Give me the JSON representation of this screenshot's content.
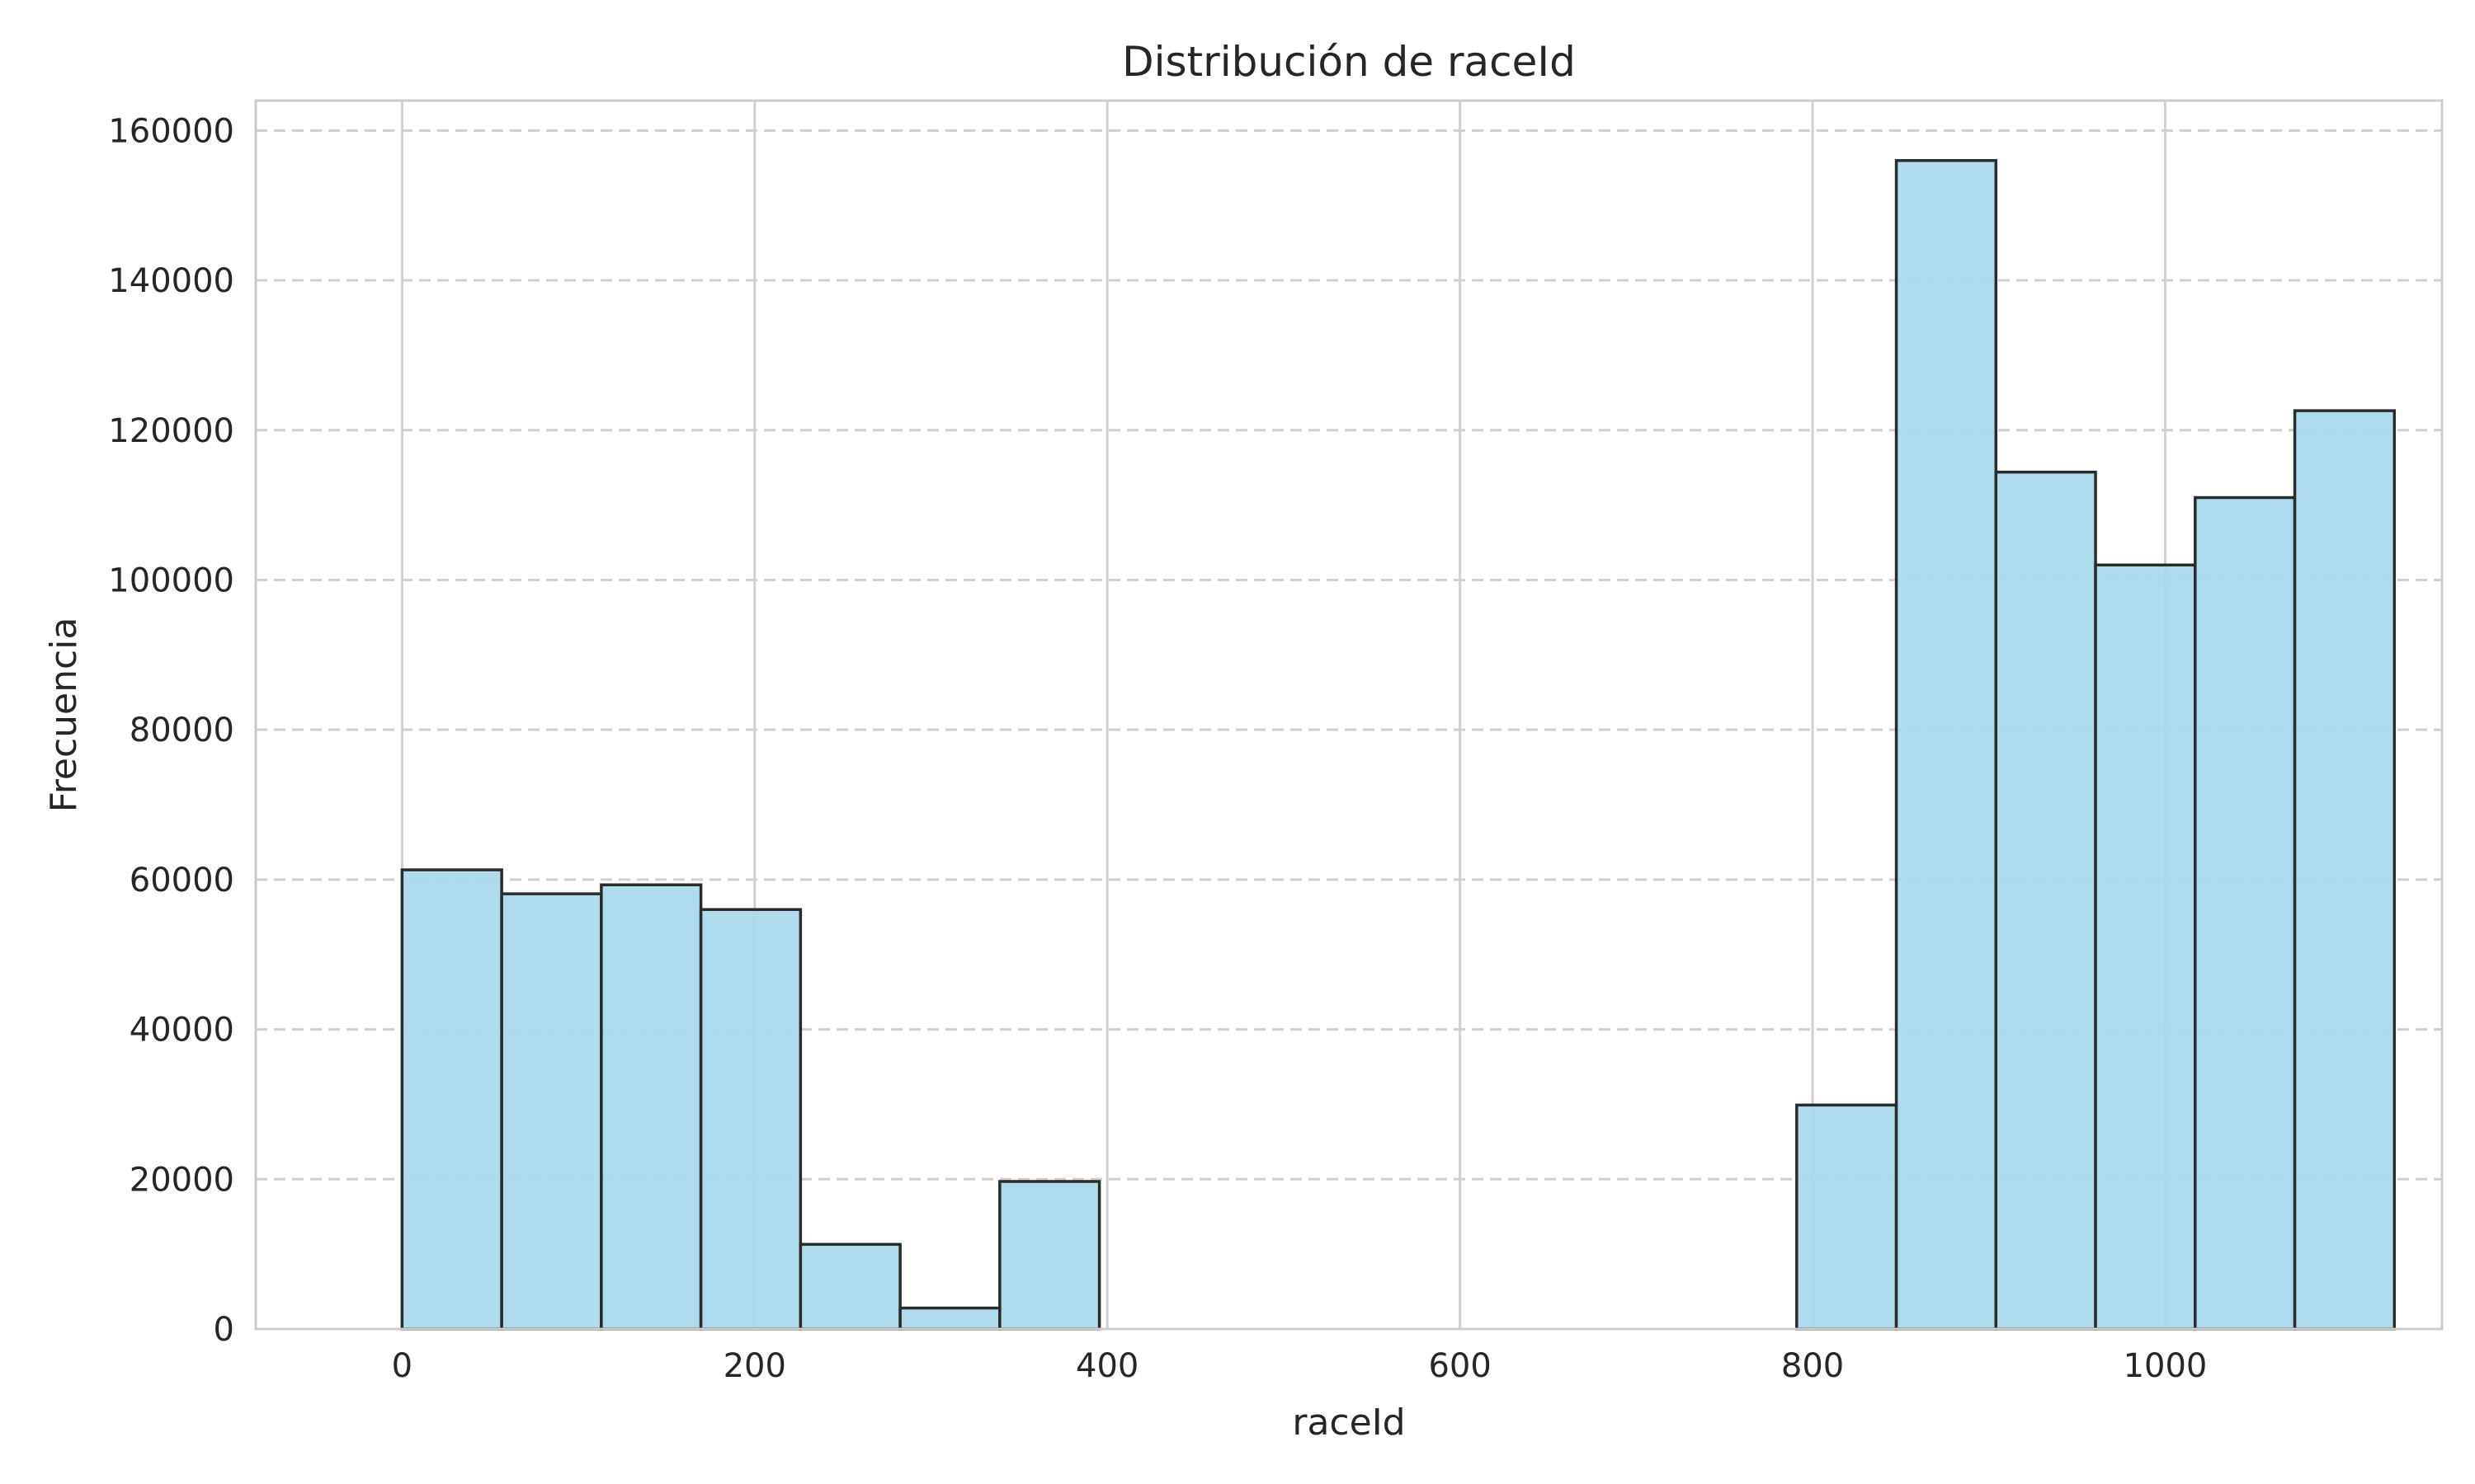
{
  "chart_data": {
    "type": "bar",
    "title": "Distribución de raceId",
    "xlabel": "raceId",
    "ylabel": "Frecuencia",
    "xlim": [
      -83,
      1157
    ],
    "ylim": [
      0,
      164000
    ],
    "xticks": [
      0,
      200,
      400,
      600,
      800,
      1000
    ],
    "yticks": [
      0,
      20000,
      40000,
      60000,
      80000,
      100000,
      120000,
      140000,
      160000
    ],
    "bins": [
      {
        "x0": 0,
        "x1": 56.5,
        "value": 61300
      },
      {
        "x0": 56.5,
        "x1": 113,
        "value": 58100
      },
      {
        "x0": 113,
        "x1": 169.5,
        "value": 59300
      },
      {
        "x0": 169.5,
        "x1": 226,
        "value": 56000
      },
      {
        "x0": 226,
        "x1": 282.5,
        "value": 11300
      },
      {
        "x0": 282.5,
        "x1": 339,
        "value": 2800
      },
      {
        "x0": 339,
        "x1": 395.5,
        "value": 19700
      },
      {
        "x0": 395.5,
        "x1": 452,
        "value": 0
      },
      {
        "x0": 452,
        "x1": 508.5,
        "value": 0
      },
      {
        "x0": 508.5,
        "x1": 565,
        "value": 0
      },
      {
        "x0": 565,
        "x1": 621.5,
        "value": 0
      },
      {
        "x0": 621.5,
        "x1": 678,
        "value": 0
      },
      {
        "x0": 678,
        "x1": 734.5,
        "value": 0
      },
      {
        "x0": 734.5,
        "x1": 791,
        "value": 0
      },
      {
        "x0": 791,
        "x1": 847.5,
        "value": 29900
      },
      {
        "x0": 847.5,
        "x1": 904,
        "value": 156000
      },
      {
        "x0": 904,
        "x1": 960.5,
        "value": 114400
      },
      {
        "x0": 960.5,
        "x1": 1017,
        "value": 102000
      },
      {
        "x0": 1017,
        "x1": 1073.5,
        "value": 111000
      },
      {
        "x0": 1073.5,
        "x1": 1130,
        "value": 122600
      }
    ],
    "bar_color": "#a8d9ec",
    "bar_edge_color": "#2b2b2b",
    "grid": true,
    "y_grid_style": "dashed",
    "x_grid_style": "solid",
    "legend": "none"
  }
}
